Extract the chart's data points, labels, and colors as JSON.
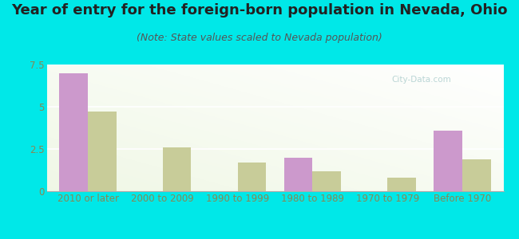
{
  "title": "Year of entry for the foreign-born population in Nevada, Ohio",
  "subtitle": "(Note: State values scaled to Nevada population)",
  "categories": [
    "2010 or later",
    "2000 to 2009",
    "1990 to 1999",
    "1980 to 1989",
    "1970 to 1979",
    "Before 1970"
  ],
  "nevada_values": [
    7.0,
    0.0,
    0.0,
    2.0,
    0.0,
    3.6
  ],
  "ohio_values": [
    4.7,
    2.6,
    1.7,
    1.2,
    0.8,
    1.9
  ],
  "nevada_color": "#cc99cc",
  "ohio_color": "#c8cc99",
  "background_color": "#00e8e8",
  "plot_bg_topleft": "#e8f5e0",
  "plot_bg_bottomright": "#f8fff8",
  "ylim": [
    0,
    7.5
  ],
  "yticks": [
    0,
    2.5,
    5,
    7.5
  ],
  "bar_width": 0.38,
  "title_fontsize": 13,
  "subtitle_fontsize": 9,
  "tick_fontsize": 8.5,
  "legend_fontsize": 10,
  "tick_color": "#888855",
  "watermark_text": "City-Data.com",
  "watermark_color": "#aacccc",
  "watermark_alpha": 0.8
}
